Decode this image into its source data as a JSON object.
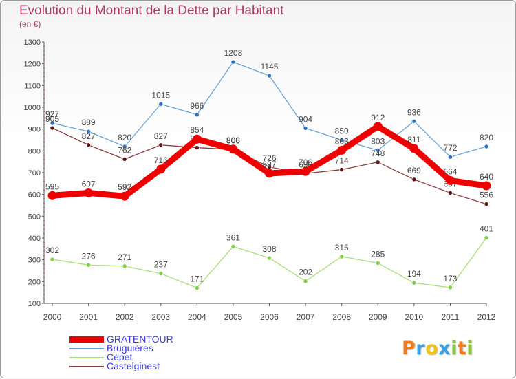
{
  "chart_data": {
    "type": "line",
    "title": "Evolution du Montant de la Dette par Habitant",
    "subtitle": "(en €)",
    "xlabel": "",
    "ylabel": "",
    "x": [
      "2000",
      "2001",
      "2002",
      "2003",
      "2004",
      "2005",
      "2006",
      "2007",
      "2008",
      "2009",
      "2010",
      "2011",
      "2012"
    ],
    "ylim": [
      100,
      1300
    ],
    "yticks": [
      100,
      200,
      300,
      400,
      500,
      600,
      700,
      800,
      900,
      1000,
      1100,
      1200,
      1300
    ],
    "series": [
      {
        "name": "Bruguières",
        "color": "#6aa3d8",
        "marker": "#2e72c2",
        "values": [
          927,
          889,
          820,
          1015,
          966,
          1208,
          1145,
          904,
          850,
          803,
          936,
          772,
          820
        ],
        "labels": [
          "927",
          "889",
          "820",
          "1015",
          "966",
          "1208",
          "1145",
          "904",
          "850",
          "803",
          "936",
          "772",
          "820"
        ]
      },
      {
        "name": "Castelginest",
        "color": "#8b3d3d",
        "marker": "#5a1414",
        "values": [
          905,
          827,
          762,
          827,
          815,
          806,
          726,
          696,
          714,
          748,
          669,
          607,
          556
        ],
        "labels": [
          "905",
          "827",
          "762",
          "827",
          "815",
          "806",
          "726",
          "696",
          "714",
          "748",
          "669",
          "607",
          "556"
        ]
      },
      {
        "name": "Cépet",
        "color": "#a8de7a",
        "marker": "#7fcc45",
        "values": [
          302,
          276,
          271,
          237,
          171,
          361,
          308,
          202,
          315,
          285,
          194,
          173,
          401
        ],
        "labels": [
          "302",
          "276",
          "271",
          "237",
          "171",
          "361",
          "308",
          "202",
          "315",
          "285",
          "194",
          "173",
          "401"
        ]
      },
      {
        "name": "GRATENTOUR",
        "color": "#ee0000",
        "marker": "#ee0000",
        "values": [
          595,
          607,
          592,
          716,
          854,
          808,
          697,
          706,
          803,
          912,
          811,
          664,
          640
        ],
        "labels": [
          "595",
          "607",
          "592",
          "716",
          "854",
          "808",
          "697",
          "706",
          "803",
          "912",
          "811",
          "664",
          "640"
        ]
      }
    ],
    "legend": [
      {
        "name": "GRATENTOUR",
        "color": "#ee0000",
        "thick": true
      },
      {
        "name": "Bruguières",
        "color": "#6aa3d8",
        "thick": false
      },
      {
        "name": "Cépet",
        "color": "#a8de7a",
        "thick": false
      },
      {
        "name": "Castelginest",
        "color": "#8b3d3d",
        "thick": false
      }
    ],
    "legend_position": "bottom-left",
    "grid": false
  },
  "logo": {
    "letters": [
      "P",
      "r",
      "o",
      "x",
      "i",
      "t",
      "i"
    ],
    "colors": [
      "#f07d1c",
      "#3aa0e0",
      "#f0c31c",
      "#3aa0e0",
      "#8cc63f",
      "#f07d1c",
      "#8cc63f"
    ]
  }
}
